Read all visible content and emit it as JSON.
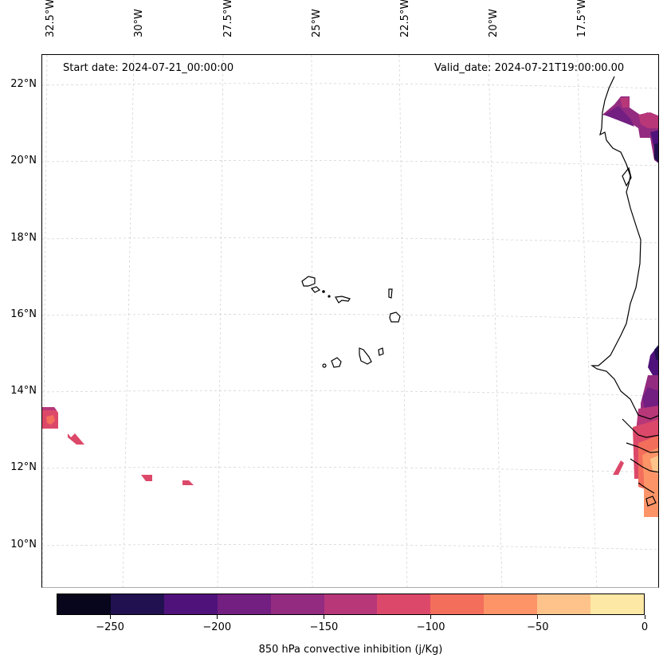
{
  "map": {
    "annotations": {
      "start_date": "Start date: 2024-07-21_00:00:00",
      "valid_date": "Valid_date: 2024-07-21T19:00:00.00"
    },
    "lon_labels": [
      "32.5°W",
      "30°W",
      "27.5°W",
      "25°W",
      "22.5°W",
      "20°W",
      "17.5°W"
    ],
    "lat_labels": [
      "22°N",
      "20°N",
      "18°N",
      "16°N",
      "14°N",
      "12°N",
      "10°N"
    ],
    "variable": "850 hPa convective inhibition",
    "units": "j/Kg",
    "region": "Cape Verde islands and West African coast"
  },
  "colorbar": {
    "label": "850 hPa convective inhibition (j/Kg)",
    "ticks": [
      "−250",
      "−200",
      "−150",
      "−100",
      "−50",
      "0"
    ],
    "levels": [
      -275,
      -250,
      -225,
      -200,
      -175,
      -150,
      -125,
      -100,
      -75,
      -50,
      -25,
      0
    ],
    "colors": [
      "#07061c",
      "#221150",
      "#4f127b",
      "#721f81",
      "#932b80",
      "#b73779",
      "#dc4869",
      "#f36e5b",
      "#fc9468",
      "#fec38b",
      "#fde8a5"
    ]
  }
}
